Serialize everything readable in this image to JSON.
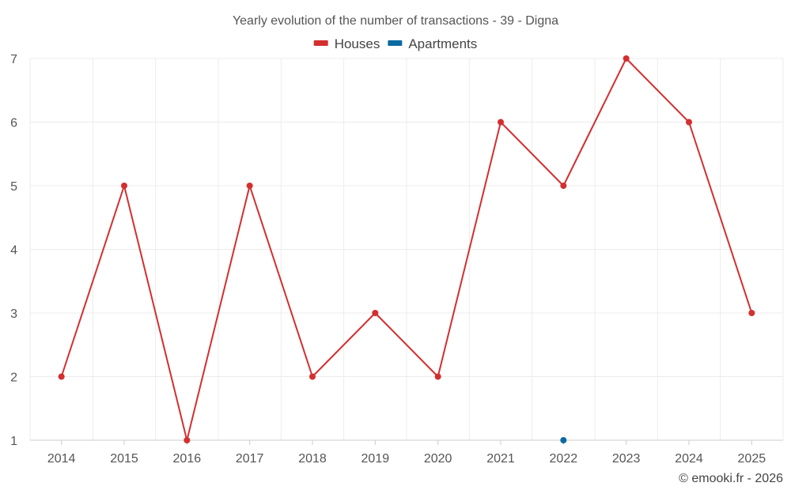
{
  "chart_data": {
    "type": "line",
    "title": "Yearly evolution of the number of transactions - 39 - Digna",
    "categories": [
      "2014",
      "2015",
      "2016",
      "2017",
      "2018",
      "2019",
      "2020",
      "2021",
      "2022",
      "2023",
      "2024",
      "2025"
    ],
    "series": [
      {
        "name": "Houses",
        "color": "#d32f2f",
        "values": [
          2,
          5,
          1,
          5,
          2,
          3,
          2,
          6,
          5,
          7,
          6,
          3
        ]
      },
      {
        "name": "Apartments",
        "color": "#0b6aa2",
        "values": [
          null,
          null,
          null,
          null,
          null,
          null,
          null,
          null,
          1,
          null,
          null,
          null
        ]
      }
    ],
    "yticks": [
      1,
      2,
      3,
      4,
      5,
      6,
      7
    ],
    "ylim": [
      1,
      7
    ],
    "xlabel": "",
    "ylabel": "",
    "grid": true,
    "legend_position": "top-center",
    "credit": "© emooki.fr - 2026"
  }
}
